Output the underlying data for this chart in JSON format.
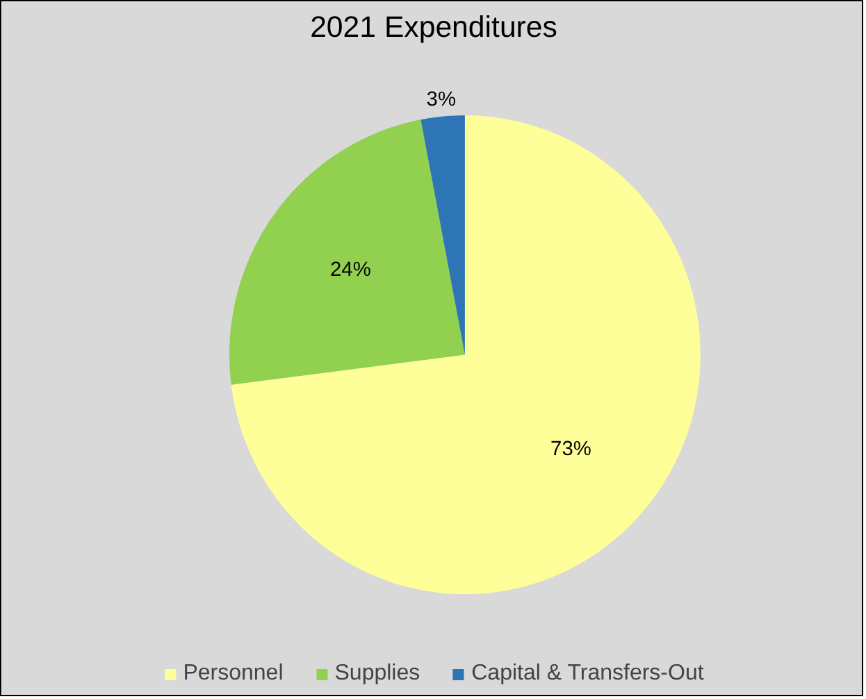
{
  "chart_data": {
    "type": "pie",
    "title": "2021 Expenditures",
    "categories": [
      "Personnel",
      "Supplies",
      "Capital & Transfers-Out"
    ],
    "values": [
      73,
      24,
      3
    ],
    "value_labels": [
      "73%",
      "24%",
      "3%"
    ],
    "colors": [
      "#ffff99",
      "#92d050",
      "#2e75b6"
    ],
    "legend": "bottom"
  }
}
